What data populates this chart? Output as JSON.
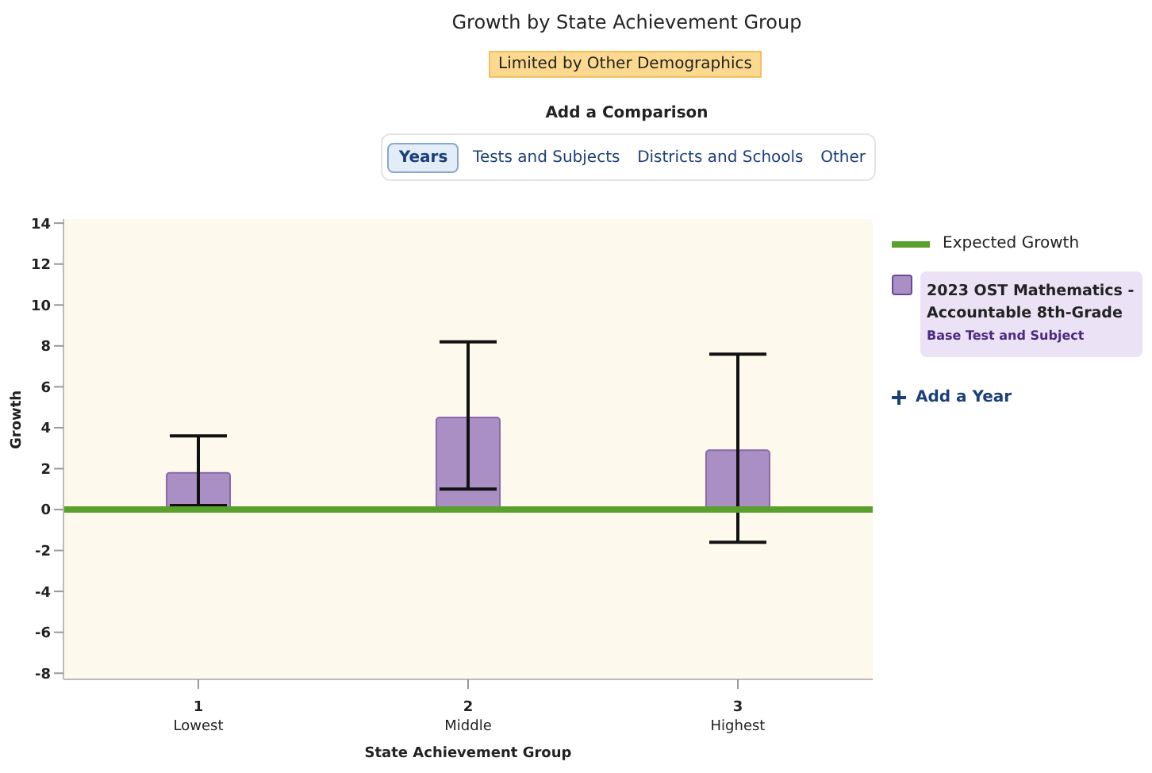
{
  "chart_data": {
    "type": "bar",
    "title": "Growth by State Achievement Group",
    "xlabel": "State Achievement Group",
    "ylabel": "Growth",
    "categories": [
      "1\nLowest",
      "2\nMiddle",
      "3\nHighest"
    ],
    "series": [
      {
        "name": "2023 OST Mathematics - Accountable 8th-Grade",
        "color": "#a98fc4",
        "values": [
          1.8,
          4.5,
          2.9
        ],
        "errors": [
          [
            0.2,
            3.6
          ],
          [
            1.0,
            8.2
          ],
          [
            -1.6,
            7.6
          ]
        ]
      }
    ],
    "ylim": [
      -8.3,
      14.2
    ],
    "yticks": [
      -8,
      -6,
      -4,
      -2,
      0,
      2,
      4,
      6,
      8,
      10,
      12,
      14
    ],
    "legend": "right",
    "ref_lines": [
      {
        "axis": "y",
        "value": 0,
        "label": "Expected Growth",
        "color": "#5aa02c"
      }
    ],
    "annotations": [
      "Limited by Other Demographics",
      "Add a Comparison",
      "Years",
      "Tests and Subjects",
      "Districts and Schools",
      "Other",
      "Base Test and Subject",
      "Add a Year"
    ]
  }
}
